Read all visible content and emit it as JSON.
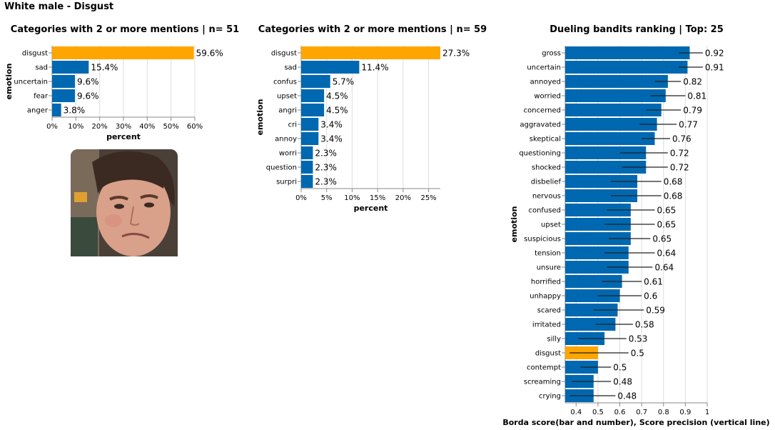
{
  "page_title": "White male - Disgust",
  "colors": {
    "bar": "#0068b0",
    "highlight": "#ffa500",
    "grid": "#dddddd",
    "axis": "#888888"
  },
  "chart_data": [
    {
      "type": "bar",
      "orientation": "horizontal",
      "title": "Categories with 2 or more mentions | n= 51",
      "xlabel": "percent",
      "ylabel": "emotion",
      "xlim": [
        0,
        60
      ],
      "xticks": [
        0,
        10,
        20,
        30,
        40,
        50,
        60
      ],
      "xtick_labels": [
        "0%",
        "10%",
        "20%",
        "30%",
        "40%",
        "50%",
        "60%"
      ],
      "grid": true,
      "highlight": "disgust",
      "categories": [
        "disgust",
        "sad",
        "uncertain",
        "fear",
        "anger"
      ],
      "values": [
        59.6,
        15.4,
        9.6,
        9.6,
        3.8
      ],
      "value_labels": [
        "59.6%",
        "15.4%",
        "9.6%",
        "9.6%",
        "3.8%"
      ]
    },
    {
      "type": "bar",
      "orientation": "horizontal",
      "title": "Categories with 2 or more mentions | n= 59",
      "xlabel": "percent",
      "ylabel": "emotion",
      "xlim": [
        0,
        27.3
      ],
      "xticks": [
        0,
        5,
        10,
        15,
        20,
        25
      ],
      "xtick_labels": [
        "0%",
        "5%",
        "10%",
        "15%",
        "20%",
        "25%"
      ],
      "grid": true,
      "highlight": "disgust",
      "categories": [
        "disgust",
        "sad",
        "confus",
        "upset",
        "angri",
        "cri",
        "annoy",
        "worri",
        "question",
        "surpri"
      ],
      "values": [
        27.3,
        11.4,
        5.7,
        4.5,
        4.5,
        3.4,
        3.4,
        2.3,
        2.3,
        2.3
      ],
      "value_labels": [
        "27.3%",
        "11.4%",
        "5.7%",
        "4.5%",
        "4.5%",
        "3.4%",
        "3.4%",
        "2.3%",
        "2.3%",
        "2.3%"
      ]
    },
    {
      "type": "bar",
      "orientation": "horizontal",
      "title": "Dueling bandits ranking | Top: 25",
      "xlabel": "Borda score(bar and number), Score precision (vertical line)",
      "ylabel": "emotion",
      "xlim": [
        0.35,
        1.0
      ],
      "xticks": [
        0.4,
        0.5,
        0.6,
        0.7,
        0.8,
        0.9,
        1
      ],
      "xtick_labels": [
        "0.4",
        "0.5",
        "0.6",
        "0.7",
        "0.8",
        "0.9",
        "1"
      ],
      "grid": true,
      "highlight": "disgust",
      "categories": [
        "gross",
        "uncertain",
        "annoyed",
        "worried",
        "concerned",
        "aggravated",
        "skeptical",
        "questioning",
        "shocked",
        "disbelief",
        "nervous",
        "confused",
        "upset",
        "suspicious",
        "tension",
        "unsure",
        "horrified",
        "unhappy",
        "scared",
        "irritated",
        "silly",
        "disgust",
        "contempt",
        "screaming",
        "crying"
      ],
      "values": [
        0.92,
        0.91,
        0.82,
        0.81,
        0.79,
        0.77,
        0.76,
        0.72,
        0.72,
        0.68,
        0.68,
        0.65,
        0.65,
        0.65,
        0.64,
        0.64,
        0.61,
        0.6,
        0.59,
        0.58,
        0.53,
        0.5,
        0.5,
        0.48,
        0.48
      ],
      "value_labels": [
        "0.92",
        "0.91",
        "0.82",
        "0.81",
        "0.79",
        "0.77",
        "0.76",
        "0.72",
        "0.72",
        "0.68",
        "0.68",
        "0.65",
        "0.65",
        "0.65",
        "0.64",
        "0.64",
        "0.61",
        "0.6",
        "0.59",
        "0.58",
        "0.53",
        "0.5",
        "0.5",
        "0.48",
        "0.48"
      ],
      "error_low": [
        0.87,
        0.87,
        0.76,
        0.74,
        0.72,
        0.69,
        0.7,
        0.6,
        0.61,
        0.56,
        0.56,
        0.54,
        0.53,
        0.55,
        0.53,
        0.54,
        0.52,
        0.5,
        0.48,
        0.49,
        0.41,
        0.37,
        0.42,
        0.38,
        0.37
      ],
      "error_high": [
        0.98,
        0.98,
        0.88,
        0.9,
        0.88,
        0.86,
        0.83,
        0.82,
        0.82,
        0.79,
        0.79,
        0.76,
        0.76,
        0.74,
        0.76,
        0.75,
        0.7,
        0.7,
        0.71,
        0.66,
        0.63,
        0.64,
        0.56,
        0.56,
        0.58
      ]
    }
  ]
}
